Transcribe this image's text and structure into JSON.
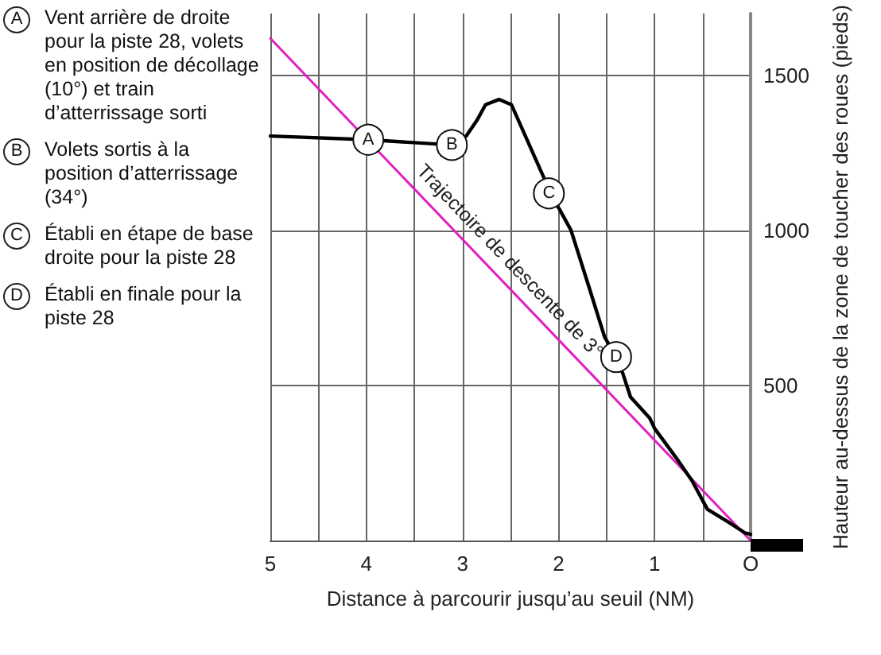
{
  "chart_data": {
    "type": "line",
    "xlabel": "Distance à parcourir jusqu’au seuil (NM)",
    "ylabel": "Hauteur au-dessus de la zone de toucher des roues (pieds)",
    "xlim": [
      5,
      0
    ],
    "ylim": [
      0,
      1700
    ],
    "xticks": [
      5,
      {
        "value": 4.5,
        "label": null
      },
      4,
      {
        "value": 3.5,
        "label": null
      },
      3,
      {
        "value": 2.5,
        "label": null
      },
      2,
      {
        "value": 1.5,
        "label": null
      },
      1,
      {
        "value": 0.5,
        "label": null
      },
      {
        "value": 0,
        "label": "O"
      }
    ],
    "yticks": [
      500,
      1000,
      1500
    ],
    "grid": true,
    "legend": false,
    "marker": "none",
    "line_style": "solid",
    "series": [
      {
        "name": "Trajectoire de descente de 3°",
        "color": "#e020c0",
        "x": [
          5,
          0
        ],
        "values": [
          1620,
          0
        ]
      },
      {
        "color": "#000000",
        "x": [
          5.0,
          3.98,
          3.11,
          2.96,
          2.85,
          2.76,
          2.62,
          2.49,
          2.14,
          2.1,
          1.99,
          1.87,
          1.69,
          1.52,
          1.4,
          1.33,
          1.25,
          1.05,
          1.0,
          0.78,
          0.61,
          0.45,
          0.23,
          0.06,
          0.0
        ],
        "values": [
          1305,
          1293,
          1276,
          1305,
          1355,
          1406,
          1423,
          1406,
          1162,
          1120,
          1069,
          1001,
          825,
          657,
          592,
          539,
          463,
          395,
          362,
          269,
          193,
          101,
          59,
          25,
          20
        ]
      }
    ],
    "annotations": [
      {
        "text": "A",
        "x": 3.98,
        "y": 1293
      },
      {
        "text": "B",
        "x": 3.11,
        "y": 1276
      },
      {
        "text": "C",
        "x": 2.1,
        "y": 1120
      },
      {
        "text": "D",
        "x": 1.4,
        "y": 592
      },
      "Vent arrière de droite pour la piste 28, volets en position de décollage (10°) et train d’atterrissage sorti",
      "Volets sortis à la position d’atterrissage (34°)",
      "Établi en étape de base droite pour la piste 28",
      "Établi en finale pour la piste 28"
    ]
  }
}
